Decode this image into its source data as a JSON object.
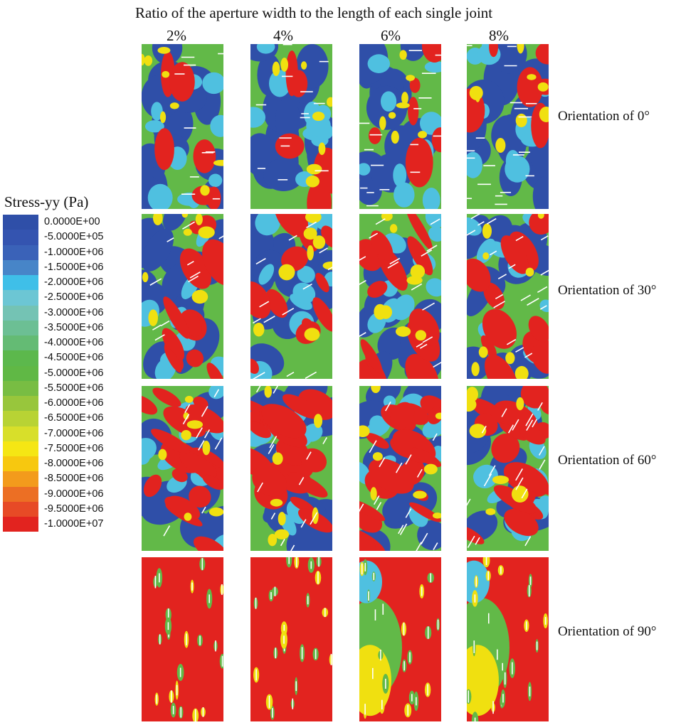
{
  "title": "Ratio of the aperture width to the length of each single joint",
  "columns": [
    "2%",
    "4%",
    "6%",
    "8%"
  ],
  "rows": [
    "Orientation of 0°",
    "Orientation of 30°",
    "Orientation of 60°",
    "Orientation of 90°"
  ],
  "legend": {
    "title": "Stress-yy (Pa)",
    "entries": [
      {
        "label": "0.0000E+00",
        "color": "#2f4fa8"
      },
      {
        "label": "-5.0000E+05",
        "color": "#3454b0"
      },
      {
        "label": "-1.0000E+06",
        "color": "#3a62b8"
      },
      {
        "label": "-1.5000E+06",
        "color": "#4785c8"
      },
      {
        "label": "-2.0000E+06",
        "color": "#3fbfe8"
      },
      {
        "label": "-2.5000E+06",
        "color": "#6cc6d4"
      },
      {
        "label": "-3.0000E+06",
        "color": "#74c3b4"
      },
      {
        "label": "-3.5000E+06",
        "color": "#6cbf94"
      },
      {
        "label": "-4.0000E+06",
        "color": "#64bb74"
      },
      {
        "label": "-4.5000E+06",
        "color": "#5cb84c"
      },
      {
        "label": "-5.0000E+06",
        "color": "#60b845"
      },
      {
        "label": "-5.5000E+06",
        "color": "#78bd43"
      },
      {
        "label": "-6.0000E+06",
        "color": "#98c63c"
      },
      {
        "label": "-6.5000E+06",
        "color": "#b8d334"
      },
      {
        "label": "-7.0000E+06",
        "color": "#d8df2a"
      },
      {
        "label": "-7.5000E+06",
        "color": "#f5e614"
      },
      {
        "label": "-8.0000E+06",
        "color": "#f7c80f"
      },
      {
        "label": "-8.5000E+06",
        "color": "#f39b1c"
      },
      {
        "label": "-9.0000E+06",
        "color": "#ec6f24"
      },
      {
        "label": "-9.5000E+06",
        "color": "#e74a26"
      },
      {
        "label": "-1.0000E+07",
        "color": "#e2231f"
      }
    ]
  },
  "colors": {
    "blue": "#2f4fa8",
    "cyan": "#4fc0e0",
    "green": "#62b948",
    "yellow": "#f0e010",
    "red": "#e2231f",
    "joint": "#ffffff"
  }
}
